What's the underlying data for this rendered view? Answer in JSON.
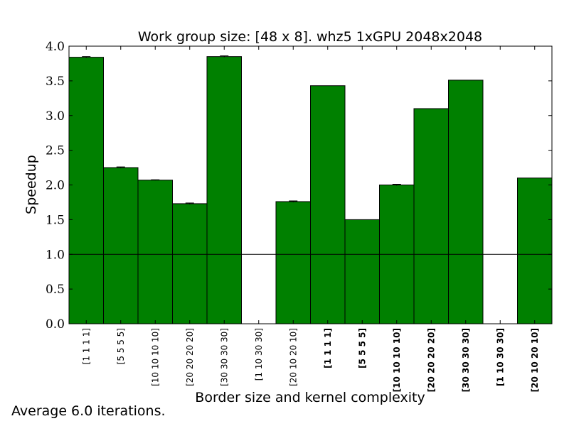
{
  "chart_data": {
    "type": "bar",
    "title": "Work group size: [48 x 8]. whz5 1xGPU 2048x2048",
    "xlabel": "Border size and kernel complexity",
    "ylabel": "Speedup",
    "ylim": [
      0,
      4.0
    ],
    "yticks": [
      "0.0",
      "0.5",
      "1.0",
      "1.5",
      "2.0",
      "2.5",
      "3.0",
      "3.5",
      "4.0"
    ],
    "reference_line": 1.0,
    "grid": false,
    "bar_color": "#008000",
    "categories": [
      "[1 1 1 1]",
      "[5 5 5 5]",
      "[10 10 10 10]",
      "[20 20 20 20]",
      "[30 30 30 30]",
      "[1 10 30 30]",
      "[20 10 20 10]",
      "[1 1 1 1]",
      "[5 5 5 5]",
      "[10 10 10 10]",
      "[20 20 20 20]",
      "[30 30 30 30]",
      "[1 10 30 30]",
      "[20 10 20 10]"
    ],
    "bold_labels": [
      false,
      false,
      false,
      false,
      false,
      false,
      false,
      true,
      true,
      true,
      true,
      true,
      true,
      true
    ],
    "values": [
      3.84,
      2.25,
      2.07,
      1.73,
      3.85,
      0.0,
      1.76,
      3.43,
      1.5,
      2.0,
      3.1,
      3.51,
      0.0,
      2.1
    ],
    "errors": [
      0.01,
      0.01,
      0.005,
      0.01,
      0.01,
      0.0,
      0.01,
      0.0,
      0.0,
      0.01,
      0.0,
      0.0,
      0.0,
      0.0
    ]
  },
  "footnote": "Average 6.0 iterations."
}
